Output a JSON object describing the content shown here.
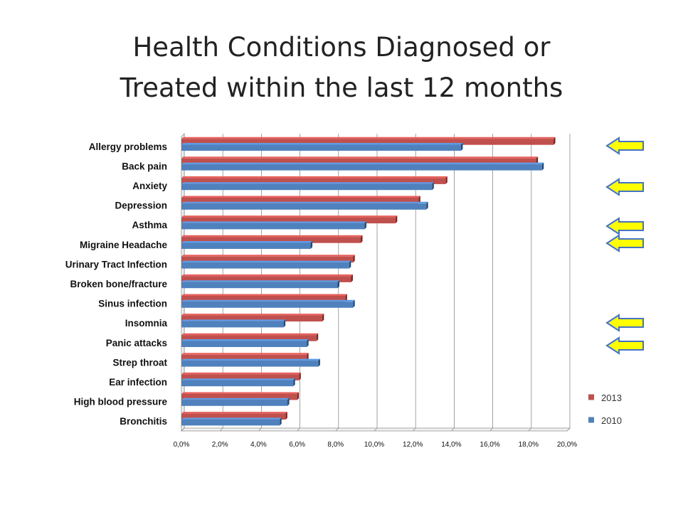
{
  "title_line1": "Health Conditions Diagnosed or",
  "title_line2": "Treated within the last 12 months",
  "chart_data": {
    "type": "bar",
    "orientation": "horizontal",
    "categories": [
      "Allergy problems",
      "Back pain",
      "Anxiety",
      "Depression",
      "Asthma",
      "Migraine Headache",
      "Urinary Tract Infection",
      "Broken bone/fracture",
      "Sinus infection",
      "Insomnia",
      "Panic attacks",
      "Strep throat",
      "Ear infection",
      "High blood pressure",
      "Bronchitis"
    ],
    "series": [
      {
        "name": "2013",
        "color": "#C0504D",
        "values": [
          19.3,
          18.4,
          13.7,
          12.3,
          11.1,
          9.3,
          8.9,
          8.8,
          8.5,
          7.3,
          7.0,
          6.5,
          6.1,
          6.0,
          5.4
        ]
      },
      {
        "name": "2010",
        "color": "#4F81BD",
        "values": [
          14.5,
          18.7,
          13.0,
          12.7,
          9.5,
          6.7,
          8.7,
          8.1,
          8.9,
          5.3,
          6.5,
          7.1,
          5.8,
          5.5,
          5.1
        ]
      }
    ],
    "xlim": [
      0,
      20
    ],
    "ticks": [
      "0,0%",
      "2,0%",
      "4,0%",
      "6,0%",
      "8,0%",
      "10,0%",
      "12,0%",
      "14,0%",
      "16,0%",
      "18,0%",
      "20,0%"
    ],
    "grid": true,
    "legend_position": "right",
    "highlighted_categories": [
      "Allergy problems",
      "Anxiety",
      "Asthma",
      "Migraine Headache",
      "Insomnia",
      "Panic attacks"
    ],
    "arrow_color": "#FFFF00"
  }
}
